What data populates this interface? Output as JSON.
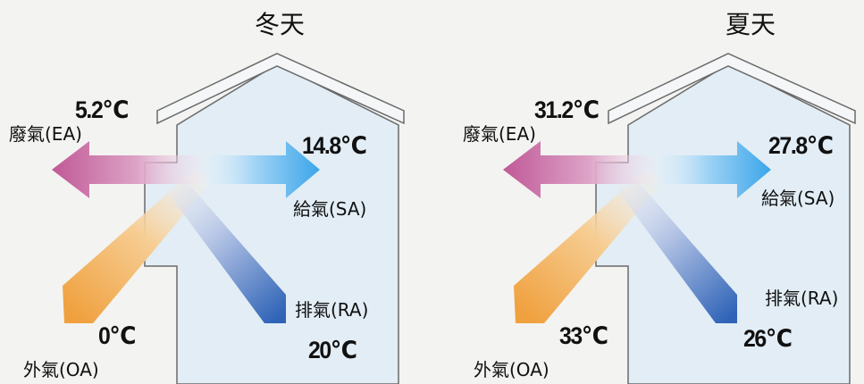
{
  "panels": [
    {
      "season": "冬天",
      "exhaust_temp": "5.2℃",
      "exhaust_label": "廢氣(EA)",
      "supply_temp": "14.8℃",
      "supply_label": "給氣(SA)",
      "return_label": "排氣(RA)",
      "outdoor_temp": "0℃",
      "return_temp": "20℃",
      "outdoor_label": "外氣(OA)"
    },
    {
      "season": "夏天",
      "exhaust_temp": "31.2℃",
      "exhaust_label": "廢氣(EA)",
      "supply_temp": "27.8℃",
      "supply_label": "給氣(SA)",
      "return_label": "排氣(RA)",
      "outdoor_temp": "33℃",
      "return_temp": "26℃",
      "outdoor_label": "外氣(OA)"
    }
  ],
  "colors": {
    "house_fill": "#e2edf5",
    "house_outline": "#6a6a6a",
    "exhaust_arrow": "#c15a98",
    "supply_arrow": "#3fa7ea",
    "outdoor_arrow": "#f0a13f",
    "return_arrow": "#2e63b7"
  }
}
